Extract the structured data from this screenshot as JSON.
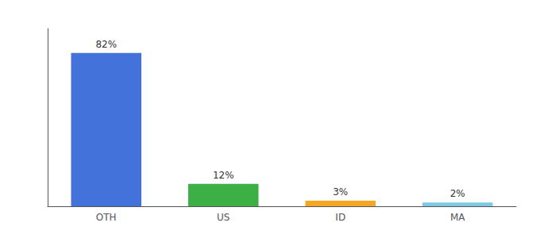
{
  "chart_data": {
    "type": "bar",
    "categories": [
      "OTH",
      "US",
      "ID",
      "MA"
    ],
    "values": [
      82,
      12,
      3,
      2
    ],
    "value_labels": [
      "82%",
      "12%",
      "3%",
      "2%"
    ],
    "colors": [
      "#4472db",
      "#3cb044",
      "#f5a623",
      "#7ec8e3"
    ],
    "ylim": [
      0,
      95
    ],
    "grid": false,
    "data_labels": true,
    "tick_labels": "x"
  }
}
